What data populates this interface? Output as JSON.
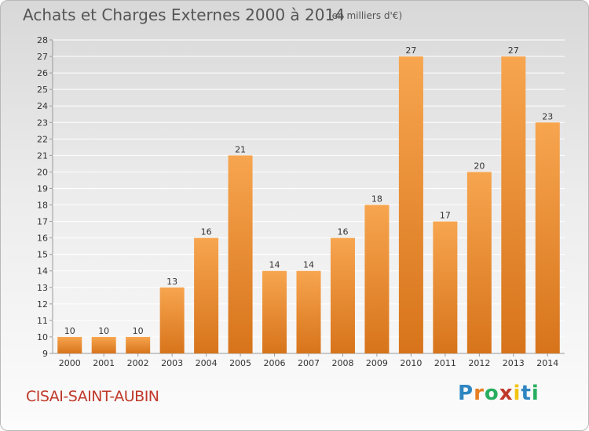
{
  "header": {
    "title": "Achats et Charges Externes 2000 à 2014",
    "subtitle": "(en milliers d'€)"
  },
  "footer": {
    "commune": "CISAI-SAINT-AUBIN",
    "brand": [
      "P",
      "r",
      "o",
      "x",
      "i",
      "t",
      "i"
    ],
    "brand_colors": [
      "#2e86c1",
      "#e67e22",
      "#27ae60",
      "#c0392b",
      "#f1c40f",
      "#2e86c1",
      "#27ae60"
    ]
  },
  "colors": {
    "bar_light": "#f7a54f",
    "bar_dark": "#d7741b",
    "label": "#333333"
  },
  "chart_data": {
    "type": "bar",
    "title": "Achats et Charges Externes 2000 à 2014",
    "categories": [
      "2000",
      "2001",
      "2002",
      "2003",
      "2004",
      "2005",
      "2006",
      "2007",
      "2008",
      "2009",
      "2010",
      "2011",
      "2012",
      "2013",
      "2014"
    ],
    "values": [
      10,
      10,
      10,
      13,
      16,
      21,
      14,
      14,
      16,
      18,
      27,
      17,
      20,
      27,
      23
    ],
    "ylim": [
      9,
      28
    ],
    "yticks": [
      9,
      10,
      11,
      12,
      13,
      14,
      15,
      16,
      17,
      18,
      19,
      20,
      21,
      22,
      23,
      24,
      25,
      26,
      27,
      28
    ],
    "grid": true,
    "data_labels": true
  }
}
